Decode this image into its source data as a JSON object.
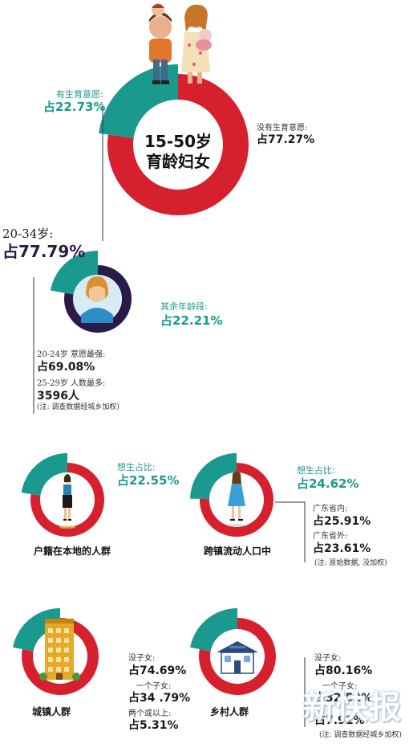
{
  "colors": {
    "red": "#d7202d",
    "teal": "#1a9a8e",
    "navy": "#2a1a4a",
    "line": "#333333"
  },
  "chart_data": [
    {
      "type": "pie",
      "center_label": [
        "15-50岁",
        "育龄妇女"
      ],
      "slices": [
        {
          "label": "有生育意愿:",
          "value_text": "占22.73%",
          "value": 22.73
        },
        {
          "label": "没有生育意愿:",
          "value_text": "占77.27%",
          "value": 77.27
        }
      ]
    },
    {
      "type": "pie",
      "slices": [
        {
          "label": "20-34岁:",
          "value_text": "占77.79%",
          "value": 77.79
        },
        {
          "label": "其余年龄段:",
          "value_text": "占22.21%",
          "value": 22.21
        }
      ],
      "notes": [
        {
          "label": "20-24岁 意愿最强:",
          "value_text": "占69.08%"
        },
        {
          "label": "25-29岁 人数最多:",
          "value_text": "3596人"
        }
      ],
      "footnote": "(注: 调查数据经城乡加权)"
    },
    {
      "type": "pie",
      "caption": "户籍在本地的人群",
      "slices": [
        {
          "label": "想生占比:",
          "value_text": "占22.55%",
          "value": 22.55
        }
      ]
    },
    {
      "type": "pie",
      "caption": "跨镇流动人口中",
      "slices": [
        {
          "label": "想生占比:",
          "value_text": "占24.62%",
          "value": 24.62
        }
      ],
      "notes": [
        {
          "label": "广东省内:",
          "value_text": "占25.91%"
        },
        {
          "label": "广东省外:",
          "value_text": "占23.61%"
        }
      ],
      "footnote": "(注: 原始数据, 没加权)"
    },
    {
      "type": "pie",
      "caption": "城镇人群",
      "notes": [
        {
          "label": "没子女:",
          "value_text": "占74.69%"
        },
        {
          "label": "一个子女:",
          "value_text": "占34 .79%"
        },
        {
          "label": "两个或以上:",
          "value_text": "占5.31%"
        }
      ]
    },
    {
      "type": "pie",
      "caption": "乡村人群",
      "notes": [
        {
          "label": "没子女:",
          "value_text": "占80.16%"
        },
        {
          "label": "一个子女:",
          "value_text": "占32.52%"
        },
        {
          "label": "",
          "value_text": "占7.91%"
        }
      ],
      "footnote": "(注: 调查数据经城乡加权)"
    }
  ],
  "watermark": "新快报"
}
